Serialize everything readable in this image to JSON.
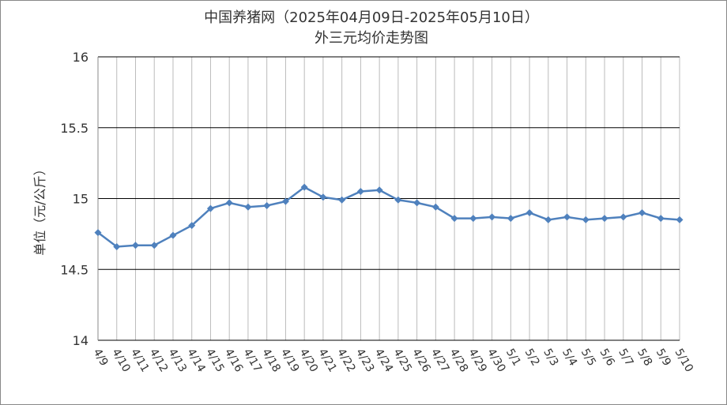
{
  "chart_data": {
    "type": "line",
    "title": "中国养猪网（2025年04月09日-2025年05月10日）",
    "subtitle": "外三元均价走势图",
    "y_label": "单位（元/公斤）",
    "categories": [
      "4/9",
      "4/10",
      "4/11",
      "4/12",
      "4/13",
      "4/14",
      "4/15",
      "4/16",
      "4/17",
      "4/18",
      "4/19",
      "4/20",
      "4/21",
      "4/22",
      "4/23",
      "4/24",
      "4/25",
      "4/26",
      "4/27",
      "4/28",
      "4/29",
      "4/30",
      "5/1",
      "5/2",
      "5/3",
      "5/4",
      "5/5",
      "5/6",
      "5/7",
      "5/8",
      "5/9",
      "5/10"
    ],
    "series": [
      {
        "name": "外三元",
        "color": "#4f81bd",
        "values": [
          14.76,
          14.66,
          14.67,
          14.67,
          14.74,
          14.81,
          14.93,
          14.97,
          14.94,
          14.95,
          14.98,
          15.08,
          15.01,
          14.99,
          15.05,
          15.06,
          14.99,
          14.97,
          14.94,
          14.86,
          14.86,
          14.87,
          14.86,
          14.9,
          14.85,
          14.87,
          14.85,
          14.86,
          14.87,
          14.9,
          14.86,
          14.85
        ]
      }
    ],
    "ylim": [
      14,
      16
    ],
    "yticks": [
      14,
      14.5,
      15,
      15.5,
      16
    ],
    "grid": true
  }
}
